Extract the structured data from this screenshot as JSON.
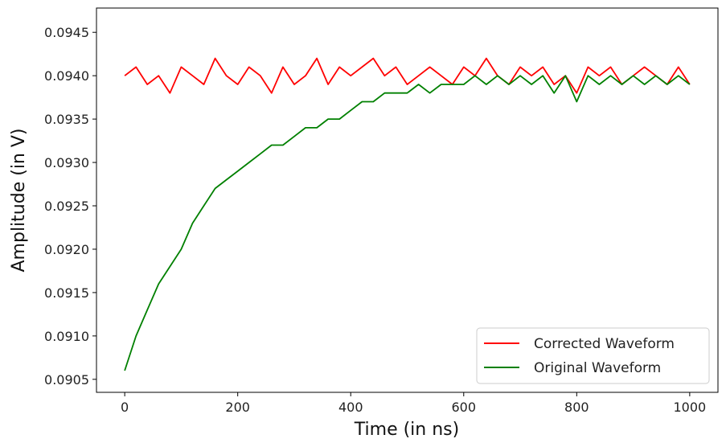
{
  "chart_data": {
    "type": "line",
    "title": "",
    "xlabel": "Time (in ns)",
    "ylabel": "Amplitude (in V)",
    "xlim": [
      -50,
      1050
    ],
    "ylim": [
      0.09035,
      0.09478
    ],
    "xticks": [
      0,
      200,
      400,
      600,
      800,
      1000
    ],
    "xtick_labels": [
      "0",
      "200",
      "400",
      "600",
      "800",
      "1000"
    ],
    "yticks": [
      0.0905,
      0.091,
      0.0915,
      0.092,
      0.0925,
      0.093,
      0.0935,
      0.094,
      0.0945
    ],
    "ytick_labels": [
      "0.0905",
      "0.0910",
      "0.0915",
      "0.0920",
      "0.0925",
      "0.0930",
      "0.0935",
      "0.0940",
      "0.0945"
    ],
    "grid": false,
    "legend_position": "lower-right",
    "series": [
      {
        "name": "Corrected Waveform",
        "color": "#ff0000",
        "x": [
          0,
          20,
          40,
          60,
          80,
          100,
          120,
          140,
          160,
          180,
          200,
          220,
          240,
          260,
          280,
          300,
          320,
          340,
          360,
          380,
          400,
          420,
          440,
          460,
          480,
          500,
          520,
          540,
          560,
          580,
          600,
          620,
          640,
          660,
          680,
          700,
          720,
          740,
          760,
          780,
          800,
          820,
          840,
          860,
          880,
          900,
          920,
          940,
          960,
          980,
          1000
        ],
        "y": [
          0.094,
          0.0941,
          0.0939,
          0.094,
          0.0938,
          0.0941,
          0.094,
          0.0939,
          0.0942,
          0.094,
          0.0939,
          0.0941,
          0.094,
          0.0938,
          0.0941,
          0.0939,
          0.094,
          0.0942,
          0.0939,
          0.0941,
          0.094,
          0.0941,
          0.0942,
          0.094,
          0.0941,
          0.0939,
          0.094,
          0.0941,
          0.094,
          0.0939,
          0.0941,
          0.094,
          0.0942,
          0.094,
          0.0939,
          0.0941,
          0.094,
          0.0941,
          0.0939,
          0.094,
          0.0938,
          0.0941,
          0.094,
          0.0941,
          0.0939,
          0.094,
          0.0941,
          0.094,
          0.0939,
          0.0941,
          0.0939
        ]
      },
      {
        "name": "Original Waveform",
        "color": "#008000",
        "x": [
          0,
          20,
          40,
          60,
          80,
          100,
          120,
          140,
          160,
          180,
          200,
          220,
          240,
          260,
          280,
          300,
          320,
          340,
          360,
          380,
          400,
          420,
          440,
          460,
          480,
          500,
          520,
          540,
          560,
          580,
          600,
          620,
          640,
          660,
          680,
          700,
          720,
          740,
          760,
          780,
          800,
          820,
          840,
          860,
          880,
          900,
          920,
          940,
          960,
          980,
          1000
        ],
        "y": [
          0.0906,
          0.091,
          0.0913,
          0.0916,
          0.0918,
          0.092,
          0.0923,
          0.0925,
          0.0927,
          0.0928,
          0.0929,
          0.093,
          0.0931,
          0.0932,
          0.0932,
          0.0933,
          0.0934,
          0.0934,
          0.0935,
          0.0935,
          0.0936,
          0.0937,
          0.0937,
          0.0938,
          0.0938,
          0.0938,
          0.0939,
          0.0938,
          0.0939,
          0.0939,
          0.0939,
          0.094,
          0.0939,
          0.094,
          0.0939,
          0.094,
          0.0939,
          0.094,
          0.0938,
          0.094,
          0.0937,
          0.094,
          0.0939,
          0.094,
          0.0939,
          0.094,
          0.0939,
          0.094,
          0.0939,
          0.094,
          0.0939
        ]
      }
    ]
  }
}
